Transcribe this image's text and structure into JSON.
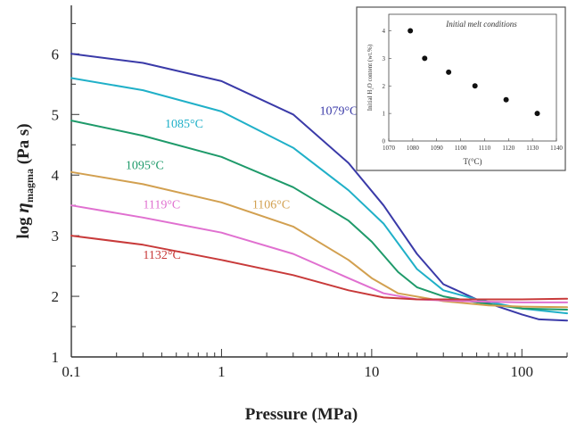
{
  "chart_data": [
    {
      "type": "line",
      "xlabel": "Pressure (MPa)",
      "ylabel": "log ηmagma (Pa s)",
      "ylabel_parts": {
        "main": "log ",
        "eta": "η",
        "sub": "magma",
        "unit": " (Pa s)"
      },
      "xscale": "log",
      "xlim": [
        0.1,
        200
      ],
      "ylim": [
        1,
        6.8
      ],
      "grid": false,
      "xticks": [
        {
          "value": 0.1,
          "label": "0.1"
        },
        {
          "value": 1,
          "label": "1"
        },
        {
          "value": 10,
          "label": "10"
        },
        {
          "value": 100,
          "label": "100"
        }
      ],
      "yticks": [
        {
          "value": 1,
          "label": "1"
        },
        {
          "value": 2,
          "label": "2"
        },
        {
          "value": 3,
          "label": "3"
        },
        {
          "value": 4,
          "label": "4"
        },
        {
          "value": 5,
          "label": "5"
        },
        {
          "value": 6,
          "label": "6"
        }
      ],
      "series": [
        {
          "name": "1079°C",
          "color": "#3a3aa8",
          "points": [
            [
              0.1,
              6.0
            ],
            [
              0.3,
              5.85
            ],
            [
              1,
              5.55
            ],
            [
              3,
              5.0
            ],
            [
              7,
              4.2
            ],
            [
              12,
              3.5
            ],
            [
              20,
              2.7
            ],
            [
              30,
              2.2
            ],
            [
              50,
              1.95
            ],
            [
              100,
              1.7
            ],
            [
              130,
              1.62
            ],
            [
              200,
              1.6
            ]
          ]
        },
        {
          "name": "1085°C",
          "color": "#20b0c8",
          "points": [
            [
              0.1,
              5.6
            ],
            [
              0.3,
              5.4
            ],
            [
              1,
              5.05
            ],
            [
              3,
              4.45
            ],
            [
              7,
              3.75
            ],
            [
              12,
              3.2
            ],
            [
              20,
              2.45
            ],
            [
              30,
              2.1
            ],
            [
              50,
              1.95
            ],
            [
              100,
              1.8
            ],
            [
              200,
              1.72
            ]
          ]
        },
        {
          "name": "1095°C",
          "color": "#1e9a6a",
          "points": [
            [
              0.1,
              4.9
            ],
            [
              0.3,
              4.65
            ],
            [
              1,
              4.3
            ],
            [
              3,
              3.8
            ],
            [
              7,
              3.25
            ],
            [
              10,
              2.9
            ],
            [
              15,
              2.4
            ],
            [
              20,
              2.15
            ],
            [
              30,
              2.0
            ],
            [
              50,
              1.9
            ],
            [
              100,
              1.8
            ],
            [
              200,
              1.78
            ]
          ]
        },
        {
          "name": "1106°C",
          "color": "#d2a050",
          "points": [
            [
              0.1,
              4.05
            ],
            [
              0.3,
              3.85
            ],
            [
              1,
              3.55
            ],
            [
              3,
              3.15
            ],
            [
              7,
              2.6
            ],
            [
              10,
              2.3
            ],
            [
              15,
              2.05
            ],
            [
              30,
              1.92
            ],
            [
              60,
              1.85
            ],
            [
              100,
              1.83
            ],
            [
              200,
              1.82
            ]
          ]
        },
        {
          "name": "1119°C",
          "color": "#e070d0",
          "points": [
            [
              0.1,
              3.5
            ],
            [
              0.3,
              3.3
            ],
            [
              1,
              3.05
            ],
            [
              3,
              2.7
            ],
            [
              7,
              2.3
            ],
            [
              12,
              2.05
            ],
            [
              20,
              1.95
            ],
            [
              40,
              1.92
            ],
            [
              100,
              1.9
            ],
            [
              200,
              1.9
            ]
          ]
        },
        {
          "name": "1132°C",
          "color": "#c83a3a",
          "points": [
            [
              0.1,
              3.0
            ],
            [
              0.3,
              2.85
            ],
            [
              1,
              2.6
            ],
            [
              3,
              2.35
            ],
            [
              7,
              2.1
            ],
            [
              12,
              1.98
            ],
            [
              20,
              1.95
            ],
            [
              50,
              1.95
            ],
            [
              100,
              1.95
            ],
            [
              200,
              1.96
            ]
          ]
        }
      ],
      "series_labels": [
        {
          "text": "1079°C",
          "color": "#3a3aa8",
          "x": 4.5,
          "y": 5.0
        },
        {
          "text": "1085°C",
          "color": "#20b0c8",
          "x": 0.42,
          "y": 4.78
        },
        {
          "text": "1095°C",
          "color": "#1e9a6a",
          "x": 0.23,
          "y": 4.1
        },
        {
          "text": "1119°C",
          "color": "#e070d0",
          "x": 0.3,
          "y": 3.45
        },
        {
          "text": "1106°C",
          "color": "#d2a050",
          "x": 1.6,
          "y": 3.45
        },
        {
          "text": "1132°C",
          "color": "#c83a3a",
          "x": 0.3,
          "y": 2.62
        }
      ]
    },
    {
      "type": "scatter",
      "title": "Initial melt conditions",
      "xlabel": "T(°C)",
      "ylabel": "Initial H₂O content (wt.%)",
      "xlim": [
        1070,
        1140
      ],
      "ylim": [
        0,
        4.6
      ],
      "xticks": [
        "1070",
        "1080",
        "1090",
        "1100",
        "1110",
        "1120",
        "1130",
        "1140"
      ],
      "yticks": [
        "0",
        "1",
        "2",
        "3",
        "4"
      ],
      "x": [
        1079,
        1085,
        1095,
        1106,
        1119,
        1132
      ],
      "y": [
        4.0,
        3.0,
        2.5,
        2.0,
        1.5,
        1.0
      ]
    }
  ]
}
